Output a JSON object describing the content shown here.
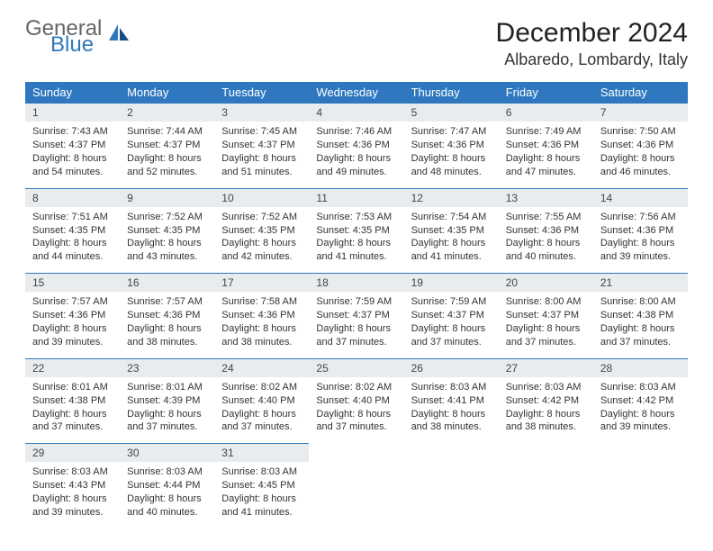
{
  "brand": {
    "line1": "General",
    "line2": "Blue"
  },
  "title": "December 2024",
  "location": "Albaredo, Lombardy, Italy",
  "colors": {
    "header_bg": "#2f78bf",
    "header_text": "#ffffff",
    "daynum_bg": "#e8ecef",
    "daynum_border": "#2f78bf",
    "body_text": "#333333",
    "page_bg": "#ffffff"
  },
  "weekdays": [
    "Sunday",
    "Monday",
    "Tuesday",
    "Wednesday",
    "Thursday",
    "Friday",
    "Saturday"
  ],
  "weeks": [
    [
      {
        "n": "1",
        "sunrise": "7:43 AM",
        "sunset": "4:37 PM",
        "daylight": "8 hours and 54 minutes."
      },
      {
        "n": "2",
        "sunrise": "7:44 AM",
        "sunset": "4:37 PM",
        "daylight": "8 hours and 52 minutes."
      },
      {
        "n": "3",
        "sunrise": "7:45 AM",
        "sunset": "4:37 PM",
        "daylight": "8 hours and 51 minutes."
      },
      {
        "n": "4",
        "sunrise": "7:46 AM",
        "sunset": "4:36 PM",
        "daylight": "8 hours and 49 minutes."
      },
      {
        "n": "5",
        "sunrise": "7:47 AM",
        "sunset": "4:36 PM",
        "daylight": "8 hours and 48 minutes."
      },
      {
        "n": "6",
        "sunrise": "7:49 AM",
        "sunset": "4:36 PM",
        "daylight": "8 hours and 47 minutes."
      },
      {
        "n": "7",
        "sunrise": "7:50 AM",
        "sunset": "4:36 PM",
        "daylight": "8 hours and 46 minutes."
      }
    ],
    [
      {
        "n": "8",
        "sunrise": "7:51 AM",
        "sunset": "4:35 PM",
        "daylight": "8 hours and 44 minutes."
      },
      {
        "n": "9",
        "sunrise": "7:52 AM",
        "sunset": "4:35 PM",
        "daylight": "8 hours and 43 minutes."
      },
      {
        "n": "10",
        "sunrise": "7:52 AM",
        "sunset": "4:35 PM",
        "daylight": "8 hours and 42 minutes."
      },
      {
        "n": "11",
        "sunrise": "7:53 AM",
        "sunset": "4:35 PM",
        "daylight": "8 hours and 41 minutes."
      },
      {
        "n": "12",
        "sunrise": "7:54 AM",
        "sunset": "4:35 PM",
        "daylight": "8 hours and 41 minutes."
      },
      {
        "n": "13",
        "sunrise": "7:55 AM",
        "sunset": "4:36 PM",
        "daylight": "8 hours and 40 minutes."
      },
      {
        "n": "14",
        "sunrise": "7:56 AM",
        "sunset": "4:36 PM",
        "daylight": "8 hours and 39 minutes."
      }
    ],
    [
      {
        "n": "15",
        "sunrise": "7:57 AM",
        "sunset": "4:36 PM",
        "daylight": "8 hours and 39 minutes."
      },
      {
        "n": "16",
        "sunrise": "7:57 AM",
        "sunset": "4:36 PM",
        "daylight": "8 hours and 38 minutes."
      },
      {
        "n": "17",
        "sunrise": "7:58 AM",
        "sunset": "4:36 PM",
        "daylight": "8 hours and 38 minutes."
      },
      {
        "n": "18",
        "sunrise": "7:59 AM",
        "sunset": "4:37 PM",
        "daylight": "8 hours and 37 minutes."
      },
      {
        "n": "19",
        "sunrise": "7:59 AM",
        "sunset": "4:37 PM",
        "daylight": "8 hours and 37 minutes."
      },
      {
        "n": "20",
        "sunrise": "8:00 AM",
        "sunset": "4:37 PM",
        "daylight": "8 hours and 37 minutes."
      },
      {
        "n": "21",
        "sunrise": "8:00 AM",
        "sunset": "4:38 PM",
        "daylight": "8 hours and 37 minutes."
      }
    ],
    [
      {
        "n": "22",
        "sunrise": "8:01 AM",
        "sunset": "4:38 PM",
        "daylight": "8 hours and 37 minutes."
      },
      {
        "n": "23",
        "sunrise": "8:01 AM",
        "sunset": "4:39 PM",
        "daylight": "8 hours and 37 minutes."
      },
      {
        "n": "24",
        "sunrise": "8:02 AM",
        "sunset": "4:40 PM",
        "daylight": "8 hours and 37 minutes."
      },
      {
        "n": "25",
        "sunrise": "8:02 AM",
        "sunset": "4:40 PM",
        "daylight": "8 hours and 37 minutes."
      },
      {
        "n": "26",
        "sunrise": "8:03 AM",
        "sunset": "4:41 PM",
        "daylight": "8 hours and 38 minutes."
      },
      {
        "n": "27",
        "sunrise": "8:03 AM",
        "sunset": "4:42 PM",
        "daylight": "8 hours and 38 minutes."
      },
      {
        "n": "28",
        "sunrise": "8:03 AM",
        "sunset": "4:42 PM",
        "daylight": "8 hours and 39 minutes."
      }
    ],
    [
      {
        "n": "29",
        "sunrise": "8:03 AM",
        "sunset": "4:43 PM",
        "daylight": "8 hours and 39 minutes."
      },
      {
        "n": "30",
        "sunrise": "8:03 AM",
        "sunset": "4:44 PM",
        "daylight": "8 hours and 40 minutes."
      },
      {
        "n": "31",
        "sunrise": "8:03 AM",
        "sunset": "4:45 PM",
        "daylight": "8 hours and 41 minutes."
      },
      null,
      null,
      null,
      null
    ]
  ],
  "labels": {
    "sunrise": "Sunrise: ",
    "sunset": "Sunset: ",
    "daylight": "Daylight: "
  }
}
